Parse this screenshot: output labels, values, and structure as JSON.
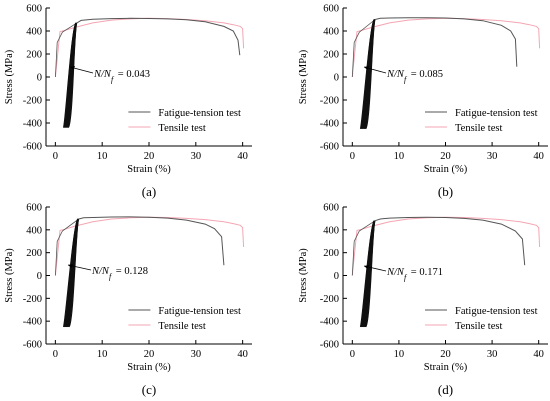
{
  "figure": {
    "series_names": [
      "Fatigue-tension test",
      "Tensile test"
    ],
    "series_colors": [
      "#555555",
      "#f4a6b3"
    ],
    "xlabel": "Strain (%)",
    "ylabel": "Stress (MPa)"
  },
  "chart_data": [
    {
      "type": "line",
      "panel_label": "(a)",
      "annotation_text": "= 0.043",
      "annotation_value": 0.043,
      "xlabel": "Strain (%)",
      "ylabel": "Stress (MPa)",
      "xlim": [
        -2,
        42
      ],
      "ylim": [
        -600,
        600
      ],
      "xticks": [
        0,
        10,
        20,
        30,
        40
      ],
      "yticks": [
        -600,
        -400,
        -200,
        0,
        200,
        400,
        600
      ],
      "legend": [
        "Fatigue-tension test",
        "Tensile test"
      ],
      "series": [
        {
          "name": "Fatigue-tension test",
          "cycle_strain_range": [
            1.7,
            4.6
          ],
          "cycle_stress_range": [
            -440,
            470
          ],
          "x": [
            4.6,
            5.5,
            8,
            12,
            16,
            20,
            24,
            28,
            32,
            36,
            38,
            39,
            39.4
          ],
          "y": [
            470,
            492,
            503,
            508,
            510,
            509,
            505,
            497,
            480,
            440,
            400,
            320,
            190
          ]
        },
        {
          "name": "Tensile test",
          "x": [
            0,
            0.5,
            1,
            2,
            4,
            8,
            12,
            16,
            20,
            24,
            28,
            32,
            36,
            38,
            39.5,
            40,
            40.2
          ],
          "y": [
            0,
            200,
            395,
            405,
            430,
            470,
            495,
            505,
            510,
            508,
            500,
            490,
            470,
            455,
            440,
            420,
            250
          ]
        }
      ]
    },
    {
      "type": "line",
      "panel_label": "(b)",
      "annotation_text": "= 0.085",
      "annotation_value": 0.085,
      "xlabel": "Strain (%)",
      "ylabel": "Stress (MPa)",
      "xlim": [
        -2,
        42
      ],
      "ylim": [
        -600,
        600
      ],
      "xticks": [
        0,
        10,
        20,
        30,
        40
      ],
      "yticks": [
        -600,
        -400,
        -200,
        0,
        200,
        400,
        600
      ],
      "legend": [
        "Fatigue-tension test",
        "Tensile test"
      ],
      "series": [
        {
          "name": "Fatigue-tension test",
          "cycle_strain_range": [
            1.7,
            4.9
          ],
          "cycle_stress_range": [
            -450,
            500
          ],
          "x": [
            4.9,
            6,
            8,
            12,
            16,
            20,
            24,
            28,
            32,
            34,
            35,
            35.3
          ],
          "y": [
            500,
            510,
            513,
            515,
            515,
            513,
            505,
            490,
            450,
            400,
            330,
            90
          ]
        },
        {
          "name": "Tensile test",
          "x": [
            0,
            0.5,
            1,
            2,
            4,
            8,
            12,
            16,
            20,
            24,
            28,
            32,
            36,
            38,
            39.5,
            40,
            40.2
          ],
          "y": [
            0,
            200,
            395,
            405,
            430,
            470,
            495,
            505,
            510,
            508,
            500,
            490,
            470,
            455,
            440,
            420,
            250
          ]
        }
      ]
    },
    {
      "type": "line",
      "panel_label": "(c)",
      "annotation_text": "= 0.128",
      "annotation_value": 0.128,
      "xlabel": "Strain (%)",
      "ylabel": "Stress (MPa)",
      "xlim": [
        -2,
        42
      ],
      "ylim": [
        -600,
        600
      ],
      "xticks": [
        0,
        10,
        20,
        30,
        40
      ],
      "yticks": [
        -600,
        -400,
        -200,
        0,
        200,
        400,
        600
      ],
      "legend": [
        "Fatigue-tension test",
        "Tensile test"
      ],
      "series": [
        {
          "name": "Fatigue-tension test",
          "cycle_strain_range": [
            1.7,
            5.0
          ],
          "cycle_stress_range": [
            -450,
            495
          ],
          "x": [
            5.0,
            6,
            8,
            12,
            16,
            20,
            24,
            28,
            32,
            34,
            35.5,
            36
          ],
          "y": [
            495,
            505,
            508,
            512,
            513,
            511,
            503,
            485,
            450,
            410,
            340,
            90
          ]
        },
        {
          "name": "Tensile test",
          "x": [
            0,
            0.5,
            1,
            2,
            4,
            8,
            12,
            16,
            20,
            24,
            28,
            32,
            36,
            38,
            39.5,
            40,
            40.2
          ],
          "y": [
            0,
            200,
            395,
            405,
            430,
            470,
            495,
            505,
            510,
            508,
            500,
            490,
            470,
            455,
            440,
            420,
            250
          ]
        }
      ]
    },
    {
      "type": "line",
      "panel_label": "(d)",
      "annotation_text": "= 0.171",
      "annotation_value": 0.171,
      "xlabel": "Strain (%)",
      "ylabel": "Stress (MPa)",
      "xlim": [
        -2,
        42
      ],
      "ylim": [
        -600,
        600
      ],
      "xticks": [
        0,
        10,
        20,
        30,
        40
      ],
      "yticks": [
        -600,
        -400,
        -200,
        0,
        200,
        400,
        600
      ],
      "legend": [
        "Fatigue-tension test",
        "Tensile test"
      ],
      "series": [
        {
          "name": "Fatigue-tension test",
          "cycle_strain_range": [
            1.7,
            4.9
          ],
          "cycle_stress_range": [
            -450,
            480
          ],
          "x": [
            4.9,
            6,
            8,
            12,
            16,
            20,
            24,
            28,
            32,
            35,
            36.5,
            37
          ],
          "y": [
            480,
            495,
            503,
            508,
            510,
            508,
            500,
            485,
            450,
            390,
            320,
            90
          ]
        },
        {
          "name": "Tensile test",
          "x": [
            0,
            0.5,
            1,
            2,
            4,
            8,
            12,
            16,
            20,
            24,
            28,
            32,
            36,
            38,
            39.5,
            40,
            40.2
          ],
          "y": [
            0,
            200,
            395,
            405,
            430,
            470,
            495,
            505,
            510,
            508,
            500,
            490,
            470,
            455,
            440,
            420,
            250
          ]
        }
      ]
    }
  ]
}
